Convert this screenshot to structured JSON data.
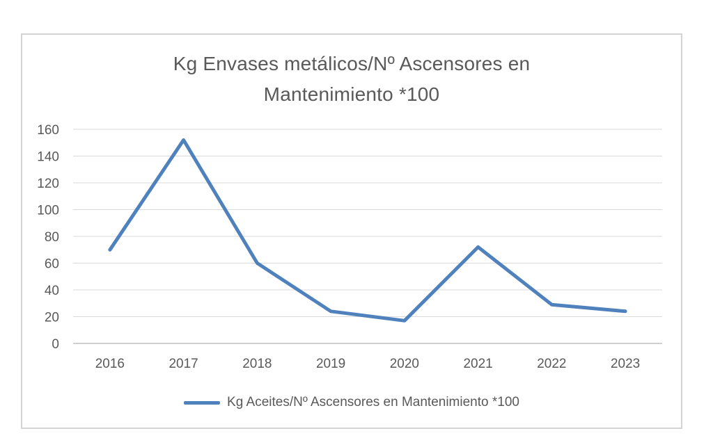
{
  "page": {
    "background_color": "#ffffff",
    "frame_border_color": "#d4d4d4"
  },
  "chart": {
    "title_line1": "Kg Envases metálicos/Nº Ascensores en",
    "title_line2": "Mantenimiento *100",
    "legend": {
      "label": "Kg Aceites/Nº Ascensores en Mantenimiento *100",
      "marker_color": "#4f81bd"
    }
  },
  "chart_data": {
    "type": "line",
    "title": "Kg Envases metálicos/Nº Ascensores en Mantenimiento *100",
    "categories": [
      "2016",
      "2017",
      "2018",
      "2019",
      "2020",
      "2021",
      "2022",
      "2023"
    ],
    "series": [
      {
        "name": "Kg Aceites/Nº Ascensores en Mantenimiento *100",
        "values": [
          70,
          152,
          60,
          24,
          17,
          72,
          29,
          24
        ],
        "color": "#4f81bd",
        "line_width": 5
      }
    ],
    "xlabel": "",
    "ylabel": "",
    "ylim": [
      0,
      160
    ],
    "yticks": [
      0,
      20,
      40,
      60,
      80,
      100,
      120,
      140,
      160
    ],
    "grid": true,
    "legend_position": "bottom",
    "gridline_color": "#d9d9d9",
    "axis_line_color": "#bfbfbf",
    "text_color": "#595959"
  }
}
